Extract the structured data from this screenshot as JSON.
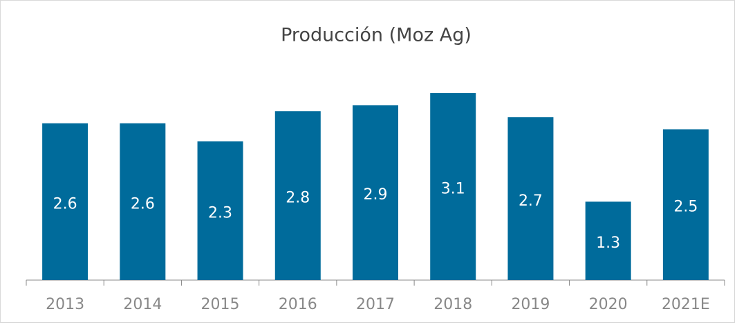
{
  "chart_data": {
    "type": "bar",
    "title": "Producción (Moz Ag)",
    "categories": [
      "2013",
      "2014",
      "2015",
      "2016",
      "2017",
      "2018",
      "2019",
      "2020",
      "2021E"
    ],
    "values": [
      2.6,
      2.6,
      2.3,
      2.8,
      2.9,
      3.1,
      2.7,
      1.3,
      2.5
    ],
    "color": "#006b9b",
    "ylim": [
      0,
      3.5
    ]
  }
}
